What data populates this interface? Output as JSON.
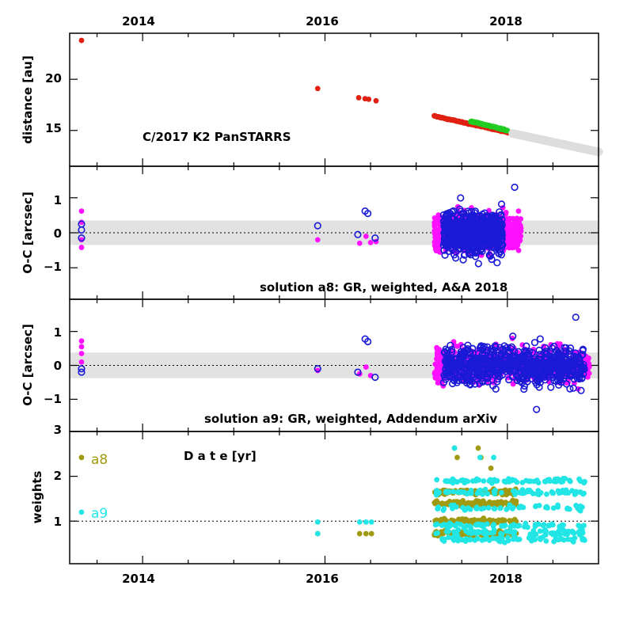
{
  "chart_data": {
    "type": "scatter",
    "x_axis": {
      "label": "Date [yr]",
      "xlim": [
        2013.2,
        2019.0
      ],
      "ticks": [
        "2014",
        "2016",
        "2018"
      ]
    },
    "panels": [
      {
        "id": "distance",
        "ylabel": "distance [au]",
        "ylim": [
          11.5,
          24.5
        ],
        "yticks": [
          "15",
          "20"
        ],
        "annotation": "C/2017 K2 PanSTARRS",
        "series": [
          {
            "name": "observations",
            "color": "#e02010",
            "points": [
              [
                2013.33,
                23.8
              ],
              [
                2015.92,
                19.1
              ],
              [
                2016.37,
                18.2
              ],
              [
                2016.44,
                18.1
              ],
              [
                2016.48,
                18.05
              ],
              [
                2016.56,
                17.9
              ]
            ]
          },
          {
            "name": "recent observations",
            "color": "#e02010",
            "range": {
              "x": [
                2017.2,
                2018.06
              ],
              "y": [
                16.4,
                14.7
              ]
            }
          },
          {
            "name": "predicted",
            "color": "#22cc22",
            "range": {
              "x": [
                2017.6,
                2018.0
              ],
              "y": [
                15.9,
                15.0
              ]
            }
          },
          {
            "name": "future",
            "color": "#dddddd",
            "range": {
              "x": [
                2018.06,
                2019.0
              ],
              "y": [
                14.7,
                12.9
              ]
            }
          }
        ]
      },
      {
        "id": "oc-a8",
        "ylabel": "O-C [arcsec]",
        "ylim": [
          -1.9,
          1.9
        ],
        "yticks": [
          "1",
          "0",
          "−1"
        ],
        "band": [
          -0.35,
          0.35
        ],
        "annotation": "solution a8: GR, weighted, A&A 2018",
        "series": [
          {
            "name": "O-C magenta",
            "color": "#ff10ff",
            "points": [
              [
                2013.33,
                0.62
              ],
              [
                2013.33,
                0.3
              ],
              [
                2013.33,
                -0.2
              ],
              [
                2013.33,
                -0.42
              ],
              [
                2015.92,
                -0.2
              ],
              [
                2016.38,
                -0.3
              ],
              [
                2016.45,
                -0.1
              ],
              [
                2016.5,
                -0.28
              ],
              [
                2016.56,
                -0.25
              ]
            ],
            "cluster": {
              "x": [
                2017.2,
                2018.15
              ],
              "y_sd": 0.35
            }
          },
          {
            "name": "O-C blue",
            "color": "#1a1ad6",
            "points": [
              [
                2013.33,
                0.25
              ],
              [
                2013.33,
                0.08
              ],
              [
                2013.33,
                -0.15
              ],
              [
                2015.92,
                0.2
              ],
              [
                2016.36,
                -0.05
              ],
              [
                2016.44,
                0.62
              ],
              [
                2016.47,
                0.55
              ],
              [
                2016.55,
                -0.15
              ],
              [
                2018.08,
                1.3
              ]
            ],
            "cluster": {
              "x": [
                2017.3,
                2017.95
              ],
              "y_sd": 0.4
            }
          }
        ]
      },
      {
        "id": "oc-a9",
        "ylabel": "O-C [arcsec]",
        "ylim": [
          -1.95,
          1.95
        ],
        "yticks": [
          "1",
          "0",
          "−1"
        ],
        "band": [
          -0.38,
          0.38
        ],
        "annotation": "solution a9: GR, weighted, Addendum arXiv",
        "series": [
          {
            "name": "O-C magenta",
            "color": "#ff10ff",
            "points": [
              [
                2013.33,
                0.72
              ],
              [
                2013.33,
                0.55
              ],
              [
                2013.33,
                0.35
              ],
              [
                2013.33,
                0.1
              ],
              [
                2015.92,
                -0.15
              ],
              [
                2016.38,
                -0.25
              ],
              [
                2016.45,
                -0.05
              ],
              [
                2016.5,
                -0.3
              ]
            ],
            "cluster": {
              "x": [
                2017.2,
                2018.9
              ],
              "y_sd": 0.35
            }
          },
          {
            "name": "O-C blue",
            "color": "#1a1ad6",
            "points": [
              [
                2013.33,
                -0.1
              ],
              [
                2013.33,
                -0.2
              ],
              [
                2015.92,
                -0.1
              ],
              [
                2016.36,
                -0.2
              ],
              [
                2016.44,
                0.78
              ],
              [
                2016.47,
                0.7
              ],
              [
                2016.55,
                -0.35
              ],
              [
                2018.75,
                1.42
              ],
              [
                2018.32,
                -1.3
              ]
            ],
            "cluster": {
              "x": [
                2017.3,
                2018.85
              ],
              "y_sd": 0.4
            }
          }
        ]
      },
      {
        "id": "weights",
        "ylabel": "weights",
        "ylim": [
          0.05,
          3.0
        ],
        "yticks": [
          "1",
          "2",
          "3"
        ],
        "refline": 1.0,
        "series": [
          {
            "name": "a8",
            "color": "#a09a10",
            "legend_y": 2.42,
            "points": [
              [
                2013.33,
                2.42
              ],
              [
                2015.92,
                0.72
              ],
              [
                2016.38,
                0.72
              ],
              [
                2016.45,
                0.72
              ],
              [
                2016.51,
                0.72
              ],
              [
                2017.42,
                2.63
              ],
              [
                2017.45,
                2.42
              ],
              [
                2017.68,
                2.63
              ],
              [
                2017.71,
                2.42
              ],
              [
                2017.82,
                2.18
              ]
            ],
            "cluster": {
              "x": [
                2017.2,
                2018.1
              ],
              "levels": [
                0.72,
                1.0,
                1.4,
                1.65
              ]
            }
          },
          {
            "name": "a9",
            "color": "#22e6e6",
            "legend_y": 1.2,
            "points": [
              [
                2013.33,
                1.2
              ],
              [
                2015.92,
                0.98
              ],
              [
                2015.92,
                0.72
              ],
              [
                2016.38,
                0.98
              ],
              [
                2016.45,
                0.98
              ],
              [
                2016.51,
                0.98
              ],
              [
                2017.42,
                2.63
              ],
              [
                2017.7,
                2.42
              ],
              [
                2017.85,
                2.42
              ]
            ],
            "cluster": {
              "x": [
                2017.2,
                2018.85
              ],
              "levels": [
                0.6,
                0.75,
                0.9,
                1.3,
                1.65,
                1.9
              ]
            }
          }
        ],
        "xlabel_text": "D a t e [yr]"
      }
    ]
  }
}
